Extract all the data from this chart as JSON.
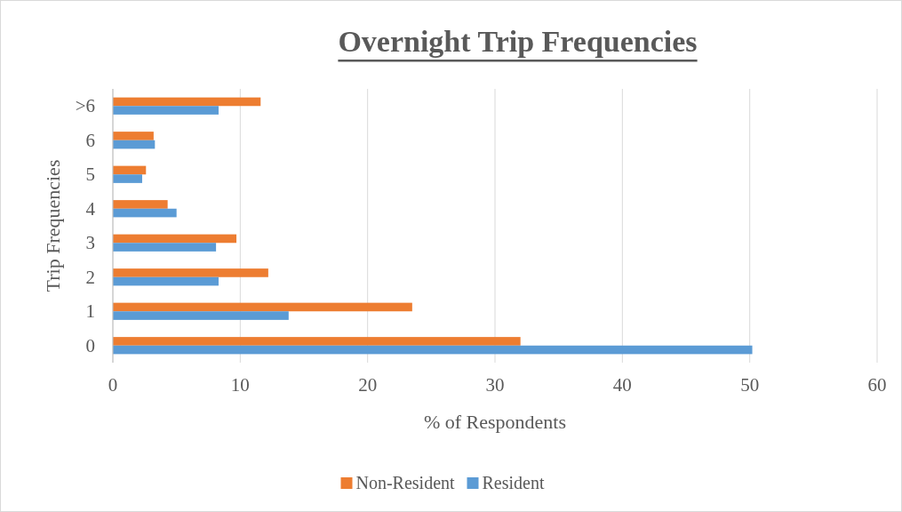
{
  "chart_data": {
    "type": "bar",
    "orientation": "horizontal",
    "title": "Overnight Trip Frequencies",
    "xlabel": "% of Respondents",
    "ylabel": "Trip Frequencies",
    "categories": [
      ">6",
      "6",
      "5",
      "4",
      "3",
      "2",
      "1",
      "0"
    ],
    "series": [
      {
        "name": "Non-Resident",
        "color": "#ed7d31",
        "values": [
          11.6,
          3.2,
          2.6,
          4.3,
          9.7,
          12.2,
          23.5,
          32.0
        ]
      },
      {
        "name": "Resident",
        "color": "#5b9bd5",
        "values": [
          8.3,
          3.3,
          2.3,
          5.0,
          8.1,
          8.3,
          13.8,
          50.2
        ]
      }
    ],
    "xlim": [
      0,
      60
    ],
    "xticks": [
      0,
      10,
      20,
      30,
      40,
      50,
      60
    ],
    "grid": "x",
    "legend": "bottom"
  }
}
